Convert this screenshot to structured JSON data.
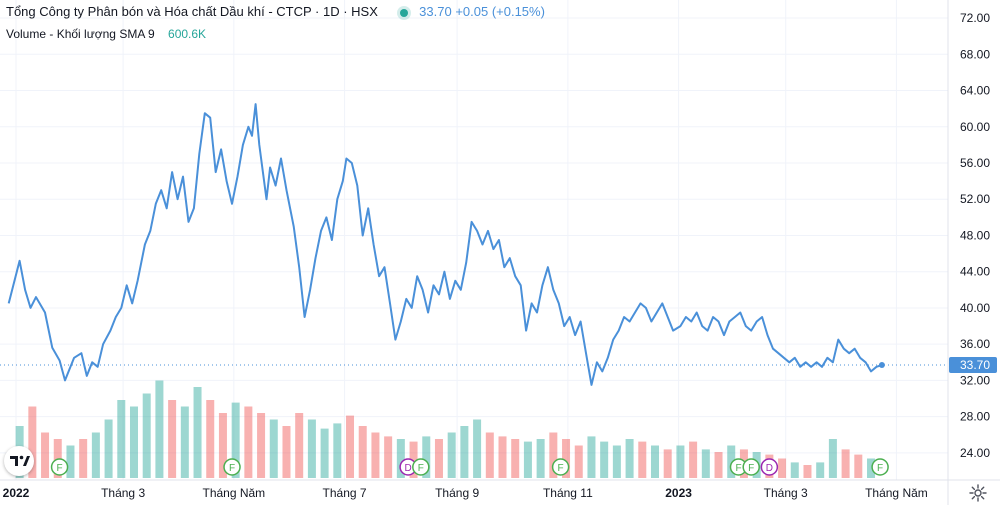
{
  "header": {
    "title": "Tổng Công ty Phân bón và Hóa chất Dầu khí - CTCP · 1D · HSX",
    "price": "33.70",
    "change": "+0.05 (+0.15%)"
  },
  "volume": {
    "label": "Volume - Khối lượng",
    "sma": "SMA 9",
    "value": "600.6K"
  },
  "colors": {
    "line": "#4a90d9",
    "volume_up": "#26a69a",
    "volume_down": "#ef5350",
    "price_tag": "#4a90d9",
    "event_dividend": "#9c27b0",
    "event_financial": "#4caf50"
  },
  "icons": [
    "tradingview-logo-icon",
    "settings-gear-icon"
  ],
  "chart_data": {
    "type": "line",
    "x_range": [
      "2022-01-01",
      "2023-05-25"
    ],
    "ylim": [
      22,
      73
    ],
    "y_ticks": [
      "24.00",
      "28.00",
      "32.00",
      "36.00",
      "40.00",
      "44.00",
      "48.00",
      "52.00",
      "56.00",
      "60.00",
      "64.00",
      "68.00",
      "72.00"
    ],
    "x_ticks": [
      {
        "date": "2022-01-01",
        "label": "2022"
      },
      {
        "date": "2022-03-01",
        "label": "Tháng 3"
      },
      {
        "date": "2022-05-01",
        "label": "Tháng Năm"
      },
      {
        "date": "2022-07-01",
        "label": "Tháng 7"
      },
      {
        "date": "2022-09-01",
        "label": "Tháng 9"
      },
      {
        "date": "2022-11-01",
        "label": "Tháng 11"
      },
      {
        "date": "2023-01-01",
        "label": "2023"
      },
      {
        "date": "2023-03-01",
        "label": "Tháng 3"
      },
      {
        "date": "2023-05-01",
        "label": "Tháng Năm"
      }
    ],
    "last_price": 33.7,
    "last_price_label": "33.70",
    "grid": true,
    "price_series": [
      [
        "2021-12-28",
        40.5
      ],
      [
        "2022-01-03",
        45.2
      ],
      [
        "2022-01-06",
        42.0
      ],
      [
        "2022-01-09",
        40.0
      ],
      [
        "2022-01-12",
        41.2
      ],
      [
        "2022-01-17",
        39.5
      ],
      [
        "2022-01-21",
        35.6
      ],
      [
        "2022-01-25",
        34.2
      ],
      [
        "2022-01-28",
        32.0
      ],
      [
        "2022-02-02",
        34.5
      ],
      [
        "2022-02-06",
        35.0
      ],
      [
        "2022-02-09",
        32.5
      ],
      [
        "2022-02-12",
        34.0
      ],
      [
        "2022-02-15",
        33.5
      ],
      [
        "2022-02-18",
        36.0
      ],
      [
        "2022-02-22",
        37.5
      ],
      [
        "2022-02-25",
        39.0
      ],
      [
        "2022-02-28",
        40.0
      ],
      [
        "2022-03-03",
        42.5
      ],
      [
        "2022-03-06",
        40.5
      ],
      [
        "2022-03-09",
        43.0
      ],
      [
        "2022-03-13",
        47.0
      ],
      [
        "2022-03-16",
        48.5
      ],
      [
        "2022-03-19",
        51.5
      ],
      [
        "2022-03-22",
        53.0
      ],
      [
        "2022-03-25",
        51.0
      ],
      [
        "2022-03-28",
        55.0
      ],
      [
        "2022-03-31",
        52.0
      ],
      [
        "2022-04-03",
        54.5
      ],
      [
        "2022-04-06",
        49.5
      ],
      [
        "2022-04-09",
        51.0
      ],
      [
        "2022-04-12",
        57.0
      ],
      [
        "2022-04-15",
        61.5
      ],
      [
        "2022-04-18",
        61.0
      ],
      [
        "2022-04-21",
        55.0
      ],
      [
        "2022-04-24",
        57.5
      ],
      [
        "2022-04-27",
        54.0
      ],
      [
        "2022-04-30",
        51.5
      ],
      [
        "2022-05-03",
        54.5
      ],
      [
        "2022-05-06",
        58.0
      ],
      [
        "2022-05-09",
        60.0
      ],
      [
        "2022-05-11",
        59.0
      ],
      [
        "2022-05-13",
        62.5
      ],
      [
        "2022-05-15",
        58.0
      ],
      [
        "2022-05-17",
        55.0
      ],
      [
        "2022-05-19",
        52.0
      ],
      [
        "2022-05-21",
        55.5
      ],
      [
        "2022-05-24",
        53.5
      ],
      [
        "2022-05-27",
        56.5
      ],
      [
        "2022-05-30",
        53.0
      ],
      [
        "2022-06-03",
        49.0
      ],
      [
        "2022-06-06",
        44.5
      ],
      [
        "2022-06-09",
        39.0
      ],
      [
        "2022-06-12",
        42.0
      ],
      [
        "2022-06-15",
        45.5
      ],
      [
        "2022-06-18",
        48.5
      ],
      [
        "2022-06-21",
        50.0
      ],
      [
        "2022-06-24",
        47.5
      ],
      [
        "2022-06-27",
        52.0
      ],
      [
        "2022-06-30",
        54.0
      ],
      [
        "2022-07-02",
        56.5
      ],
      [
        "2022-07-05",
        56.0
      ],
      [
        "2022-07-08",
        53.5
      ],
      [
        "2022-07-11",
        48.0
      ],
      [
        "2022-07-14",
        51.0
      ],
      [
        "2022-07-17",
        47.0
      ],
      [
        "2022-07-20",
        43.5
      ],
      [
        "2022-07-23",
        44.5
      ],
      [
        "2022-07-26",
        40.5
      ],
      [
        "2022-07-29",
        36.5
      ],
      [
        "2022-08-01",
        38.5
      ],
      [
        "2022-08-04",
        41.0
      ],
      [
        "2022-08-07",
        40.0
      ],
      [
        "2022-08-10",
        43.5
      ],
      [
        "2022-08-13",
        42.0
      ],
      [
        "2022-08-16",
        39.5
      ],
      [
        "2022-08-19",
        42.5
      ],
      [
        "2022-08-22",
        41.5
      ],
      [
        "2022-08-25",
        44.0
      ],
      [
        "2022-08-28",
        41.0
      ],
      [
        "2022-08-31",
        43.0
      ],
      [
        "2022-09-03",
        42.0
      ],
      [
        "2022-09-06",
        45.0
      ],
      [
        "2022-09-09",
        49.5
      ],
      [
        "2022-09-12",
        48.5
      ],
      [
        "2022-09-15",
        47.0
      ],
      [
        "2022-09-18",
        48.5
      ],
      [
        "2022-09-21",
        46.5
      ],
      [
        "2022-09-24",
        47.5
      ],
      [
        "2022-09-27",
        44.5
      ],
      [
        "2022-09-30",
        45.5
      ],
      [
        "2022-10-03",
        43.5
      ],
      [
        "2022-10-06",
        42.5
      ],
      [
        "2022-10-09",
        37.5
      ],
      [
        "2022-10-12",
        40.5
      ],
      [
        "2022-10-15",
        39.5
      ],
      [
        "2022-10-18",
        42.5
      ],
      [
        "2022-10-21",
        44.5
      ],
      [
        "2022-10-24",
        42.0
      ],
      [
        "2022-10-27",
        40.5
      ],
      [
        "2022-10-30",
        38.0
      ],
      [
        "2022-11-02",
        39.0
      ],
      [
        "2022-11-05",
        37.0
      ],
      [
        "2022-11-08",
        38.5
      ],
      [
        "2022-11-11",
        35.0
      ],
      [
        "2022-11-14",
        31.5
      ],
      [
        "2022-11-17",
        34.0
      ],
      [
        "2022-11-20",
        33.0
      ],
      [
        "2022-11-23",
        34.5
      ],
      [
        "2022-11-26",
        36.5
      ],
      [
        "2022-11-29",
        37.5
      ],
      [
        "2022-12-02",
        39.0
      ],
      [
        "2022-12-05",
        38.5
      ],
      [
        "2022-12-08",
        39.5
      ],
      [
        "2022-12-11",
        40.5
      ],
      [
        "2022-12-14",
        40.0
      ],
      [
        "2022-12-17",
        38.5
      ],
      [
        "2022-12-20",
        39.5
      ],
      [
        "2022-12-23",
        40.5
      ],
      [
        "2022-12-26",
        39.0
      ],
      [
        "2022-12-29",
        37.5
      ],
      [
        "2023-01-02",
        38.0
      ],
      [
        "2023-01-05",
        39.0
      ],
      [
        "2023-01-08",
        38.5
      ],
      [
        "2023-01-11",
        39.5
      ],
      [
        "2023-01-14",
        38.0
      ],
      [
        "2023-01-17",
        37.5
      ],
      [
        "2023-01-20",
        39.0
      ],
      [
        "2023-01-23",
        38.5
      ],
      [
        "2023-01-26",
        37.0
      ],
      [
        "2023-01-29",
        38.5
      ],
      [
        "2023-02-01",
        39.0
      ],
      [
        "2023-02-04",
        39.5
      ],
      [
        "2023-02-07",
        38.0
      ],
      [
        "2023-02-10",
        37.5
      ],
      [
        "2023-02-13",
        38.5
      ],
      [
        "2023-02-16",
        39.0
      ],
      [
        "2023-02-19",
        37.0
      ],
      [
        "2023-02-22",
        35.5
      ],
      [
        "2023-02-25",
        35.0
      ],
      [
        "2023-02-28",
        34.5
      ],
      [
        "2023-03-03",
        34.0
      ],
      [
        "2023-03-06",
        34.5
      ],
      [
        "2023-03-09",
        33.5
      ],
      [
        "2023-03-12",
        34.0
      ],
      [
        "2023-03-15",
        33.5
      ],
      [
        "2023-03-18",
        34.0
      ],
      [
        "2023-03-21",
        33.5
      ],
      [
        "2023-03-24",
        34.5
      ],
      [
        "2023-03-27",
        34.0
      ],
      [
        "2023-03-30",
        36.5
      ],
      [
        "2023-04-02",
        35.5
      ],
      [
        "2023-04-05",
        35.0
      ],
      [
        "2023-04-08",
        35.5
      ],
      [
        "2023-04-11",
        34.5
      ],
      [
        "2023-04-14",
        34.0
      ],
      [
        "2023-04-17",
        33.0
      ],
      [
        "2023-04-20",
        33.5
      ],
      [
        "2023-04-23",
        33.7
      ]
    ],
    "volume_series": [
      [
        "2022-01-03",
        40,
        "up"
      ],
      [
        "2022-01-10",
        55,
        "down"
      ],
      [
        "2022-01-17",
        35,
        "down"
      ],
      [
        "2022-01-24",
        30,
        "down"
      ],
      [
        "2022-01-31",
        25,
        "up"
      ],
      [
        "2022-02-07",
        30,
        "down"
      ],
      [
        "2022-02-14",
        35,
        "up"
      ],
      [
        "2022-02-21",
        45,
        "up"
      ],
      [
        "2022-02-28",
        60,
        "up"
      ],
      [
        "2022-03-07",
        55,
        "up"
      ],
      [
        "2022-03-14",
        65,
        "up"
      ],
      [
        "2022-03-21",
        75,
        "up"
      ],
      [
        "2022-03-28",
        60,
        "down"
      ],
      [
        "2022-04-04",
        55,
        "up"
      ],
      [
        "2022-04-11",
        70,
        "up"
      ],
      [
        "2022-04-18",
        60,
        "down"
      ],
      [
        "2022-04-25",
        50,
        "down"
      ],
      [
        "2022-05-02",
        58,
        "up"
      ],
      [
        "2022-05-09",
        55,
        "down"
      ],
      [
        "2022-05-16",
        50,
        "down"
      ],
      [
        "2022-05-23",
        45,
        "up"
      ],
      [
        "2022-05-30",
        40,
        "down"
      ],
      [
        "2022-06-06",
        50,
        "down"
      ],
      [
        "2022-06-13",
        45,
        "up"
      ],
      [
        "2022-06-20",
        38,
        "up"
      ],
      [
        "2022-06-27",
        42,
        "up"
      ],
      [
        "2022-07-04",
        48,
        "down"
      ],
      [
        "2022-07-11",
        40,
        "down"
      ],
      [
        "2022-07-18",
        35,
        "down"
      ],
      [
        "2022-07-25",
        32,
        "down"
      ],
      [
        "2022-08-01",
        30,
        "up"
      ],
      [
        "2022-08-08",
        28,
        "down"
      ],
      [
        "2022-08-15",
        32,
        "up"
      ],
      [
        "2022-08-22",
        30,
        "down"
      ],
      [
        "2022-08-29",
        35,
        "up"
      ],
      [
        "2022-09-05",
        40,
        "up"
      ],
      [
        "2022-09-12",
        45,
        "up"
      ],
      [
        "2022-09-19",
        35,
        "down"
      ],
      [
        "2022-09-26",
        32,
        "down"
      ],
      [
        "2022-10-03",
        30,
        "down"
      ],
      [
        "2022-10-10",
        28,
        "up"
      ],
      [
        "2022-10-17",
        30,
        "up"
      ],
      [
        "2022-10-24",
        35,
        "down"
      ],
      [
        "2022-10-31",
        30,
        "down"
      ],
      [
        "2022-11-07",
        25,
        "down"
      ],
      [
        "2022-11-14",
        32,
        "up"
      ],
      [
        "2022-11-21",
        28,
        "up"
      ],
      [
        "2022-11-28",
        25,
        "up"
      ],
      [
        "2022-12-05",
        30,
        "up"
      ],
      [
        "2022-12-12",
        28,
        "down"
      ],
      [
        "2022-12-19",
        25,
        "up"
      ],
      [
        "2022-12-26",
        22,
        "down"
      ],
      [
        "2023-01-02",
        25,
        "up"
      ],
      [
        "2023-01-09",
        28,
        "down"
      ],
      [
        "2023-01-16",
        22,
        "up"
      ],
      [
        "2023-01-23",
        20,
        "down"
      ],
      [
        "2023-01-30",
        25,
        "up"
      ],
      [
        "2023-02-06",
        22,
        "down"
      ],
      [
        "2023-02-13",
        20,
        "up"
      ],
      [
        "2023-02-20",
        18,
        "down"
      ],
      [
        "2023-02-27",
        15,
        "down"
      ],
      [
        "2023-03-06",
        12,
        "up"
      ],
      [
        "2023-03-13",
        10,
        "down"
      ],
      [
        "2023-03-20",
        12,
        "up"
      ],
      [
        "2023-03-27",
        30,
        "up"
      ],
      [
        "2023-04-03",
        22,
        "down"
      ],
      [
        "2023-04-10",
        18,
        "down"
      ],
      [
        "2023-04-17",
        15,
        "up"
      ]
    ],
    "events": [
      {
        "date": "2022-01-25",
        "type": "F"
      },
      {
        "date": "2022-04-30",
        "type": "F"
      },
      {
        "date": "2022-08-05",
        "type": "D"
      },
      {
        "date": "2022-08-12",
        "type": "F"
      },
      {
        "date": "2022-10-28",
        "type": "F"
      },
      {
        "date": "2023-02-03",
        "type": "F"
      },
      {
        "date": "2023-02-10",
        "type": "F"
      },
      {
        "date": "2023-02-20",
        "type": "D"
      },
      {
        "date": "2023-04-22",
        "type": "F"
      }
    ]
  }
}
